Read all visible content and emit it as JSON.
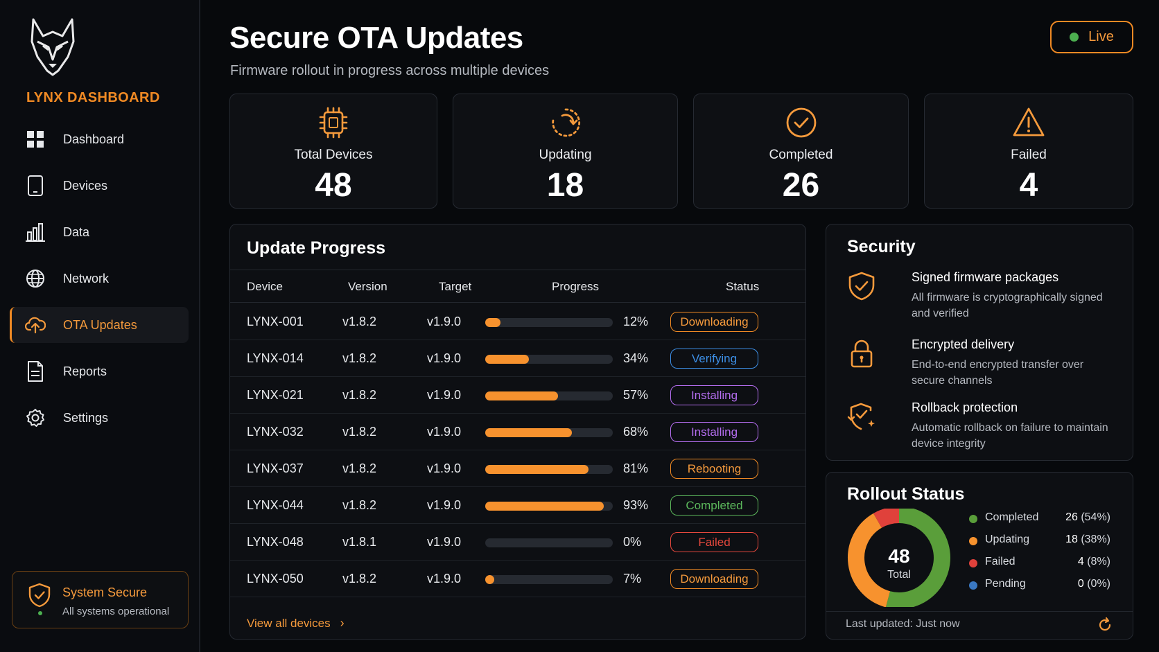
{
  "sidebar": {
    "brand": "LYNX DASHBOARD",
    "items": [
      {
        "label": "Dashboard",
        "icon": "grid-icon"
      },
      {
        "label": "Devices",
        "icon": "phone-icon"
      },
      {
        "label": "Data",
        "icon": "bar-chart-icon"
      },
      {
        "label": "Network",
        "icon": "globe-icon"
      },
      {
        "label": "OTA Updates",
        "icon": "cloud-upload-icon",
        "active": true
      },
      {
        "label": "Reports",
        "icon": "document-icon"
      },
      {
        "label": "Settings",
        "icon": "gear-icon"
      }
    ],
    "status": {
      "title": "System Secure",
      "subtitle": "All systems operational"
    }
  },
  "header": {
    "title": "Secure OTA Updates",
    "subtitle": "Firmware rollout in progress across multiple devices",
    "live_label": "Live"
  },
  "stats": [
    {
      "label": "Total Devices",
      "value": "48",
      "icon": "chip-icon"
    },
    {
      "label": "Updating",
      "value": "18",
      "icon": "sync-icon"
    },
    {
      "label": "Completed",
      "value": "26",
      "icon": "check-circle-icon"
    },
    {
      "label": "Failed",
      "value": "4",
      "icon": "warning-icon"
    }
  ],
  "progress": {
    "title": "Update Progress",
    "columns": [
      "Device",
      "Version",
      "Target",
      "Progress",
      "Status"
    ],
    "rows": [
      {
        "device": "LYNX-001",
        "version": "v1.8.2",
        "target": "v1.9.0",
        "progress": 12,
        "pct": "12%",
        "status": "Downloading",
        "status_color": "#f08a24"
      },
      {
        "device": "LYNX-014",
        "version": "v1.8.2",
        "target": "v1.9.0",
        "progress": 34,
        "pct": "34%",
        "status": "Verifying",
        "status_color": "#3d8fe6"
      },
      {
        "device": "LYNX-021",
        "version": "v1.8.2",
        "target": "v1.9.0",
        "progress": 57,
        "pct": "57%",
        "status": "Installing",
        "status_color": "#b56ef0"
      },
      {
        "device": "LYNX-032",
        "version": "v1.8.2",
        "target": "v1.9.0",
        "progress": 68,
        "pct": "68%",
        "status": "Installing",
        "status_color": "#b56ef0"
      },
      {
        "device": "LYNX-037",
        "version": "v1.8.2",
        "target": "v1.9.0",
        "progress": 81,
        "pct": "81%",
        "status": "Rebooting",
        "status_color": "#f08a24"
      },
      {
        "device": "LYNX-044",
        "version": "v1.8.2",
        "target": "v1.9.0",
        "progress": 93,
        "pct": "93%",
        "status": "Completed",
        "status_color": "#5cb85c"
      },
      {
        "device": "LYNX-048",
        "version": "v1.8.1",
        "target": "v1.9.0",
        "progress": 0,
        "pct": "0%",
        "status": "Failed",
        "status_color": "#e5483d"
      },
      {
        "device": "LYNX-050",
        "version": "v1.8.2",
        "target": "v1.9.0",
        "progress": 7,
        "pct": "7%",
        "status": "Downloading",
        "status_color": "#f08a24"
      }
    ],
    "view_all": "View all devices"
  },
  "security": {
    "title": "Security",
    "items": [
      {
        "title": "Signed firmware packages",
        "desc": "All firmware is cryptographically signed and verified",
        "icon": "shield-check-icon"
      },
      {
        "title": "Encrypted delivery",
        "desc": "End-to-end encrypted transfer over secure channels",
        "icon": "lock-icon"
      },
      {
        "title": "Rollback protection",
        "desc": "Automatic rollback on failure to maintain device integrity",
        "icon": "shield-rollback-icon"
      }
    ]
  },
  "rollout": {
    "title": "Rollout Status",
    "total": "48",
    "total_label": "Total",
    "segments": [
      {
        "name": "Completed",
        "count": "26",
        "pct": "(54%)",
        "value": 26,
        "color": "#5a9e3a"
      },
      {
        "name": "Updating",
        "count": "18",
        "pct": "(38%)",
        "value": 18,
        "color": "#f7922e"
      },
      {
        "name": "Failed",
        "count": "4",
        "pct": "(8%)",
        "value": 4,
        "color": "#e0413b"
      },
      {
        "name": "Pending",
        "count": "0",
        "pct": "(0%)",
        "value": 0,
        "color": "#3a78c2"
      }
    ],
    "last_updated": "Last updated: Just now"
  },
  "colors": {
    "accent": "#f08a24",
    "success": "#4caf50"
  }
}
